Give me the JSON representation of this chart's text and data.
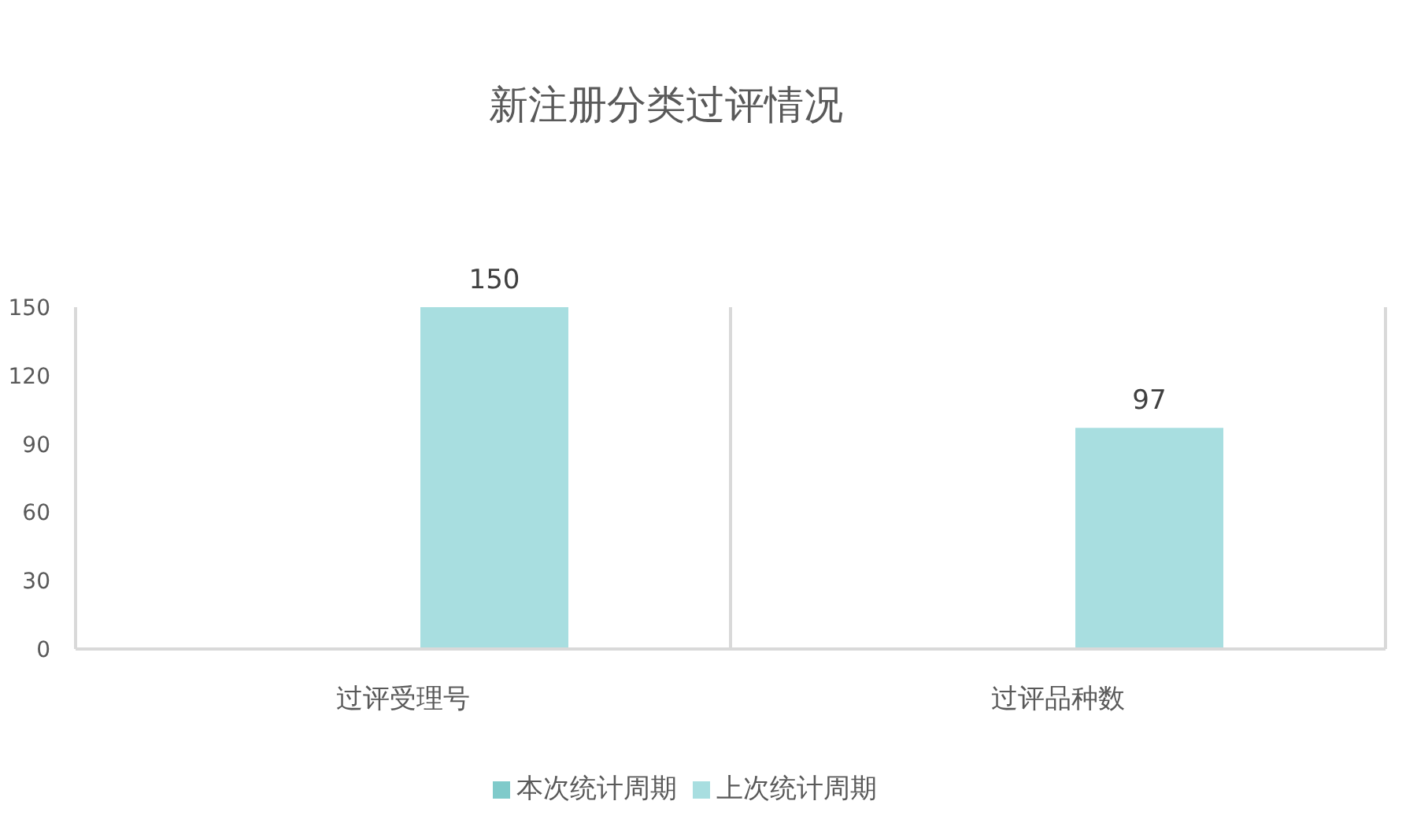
{
  "chart_data": {
    "type": "bar",
    "title": "新注册分类过评情况",
    "categories": [
      "过评受理号",
      "过评品种数"
    ],
    "series": [
      {
        "name": "本次统计周期",
        "color": "#7fcaca",
        "values": [
          null,
          null
        ]
      },
      {
        "name": "上次统计周期",
        "color": "#a8dee0",
        "values": [
          150,
          97
        ]
      }
    ],
    "ylim": [
      0,
      150
    ],
    "yticks": [
      0,
      30,
      60,
      90,
      120,
      150
    ],
    "grid": "x",
    "legend": "bottom",
    "data_labels": true
  }
}
